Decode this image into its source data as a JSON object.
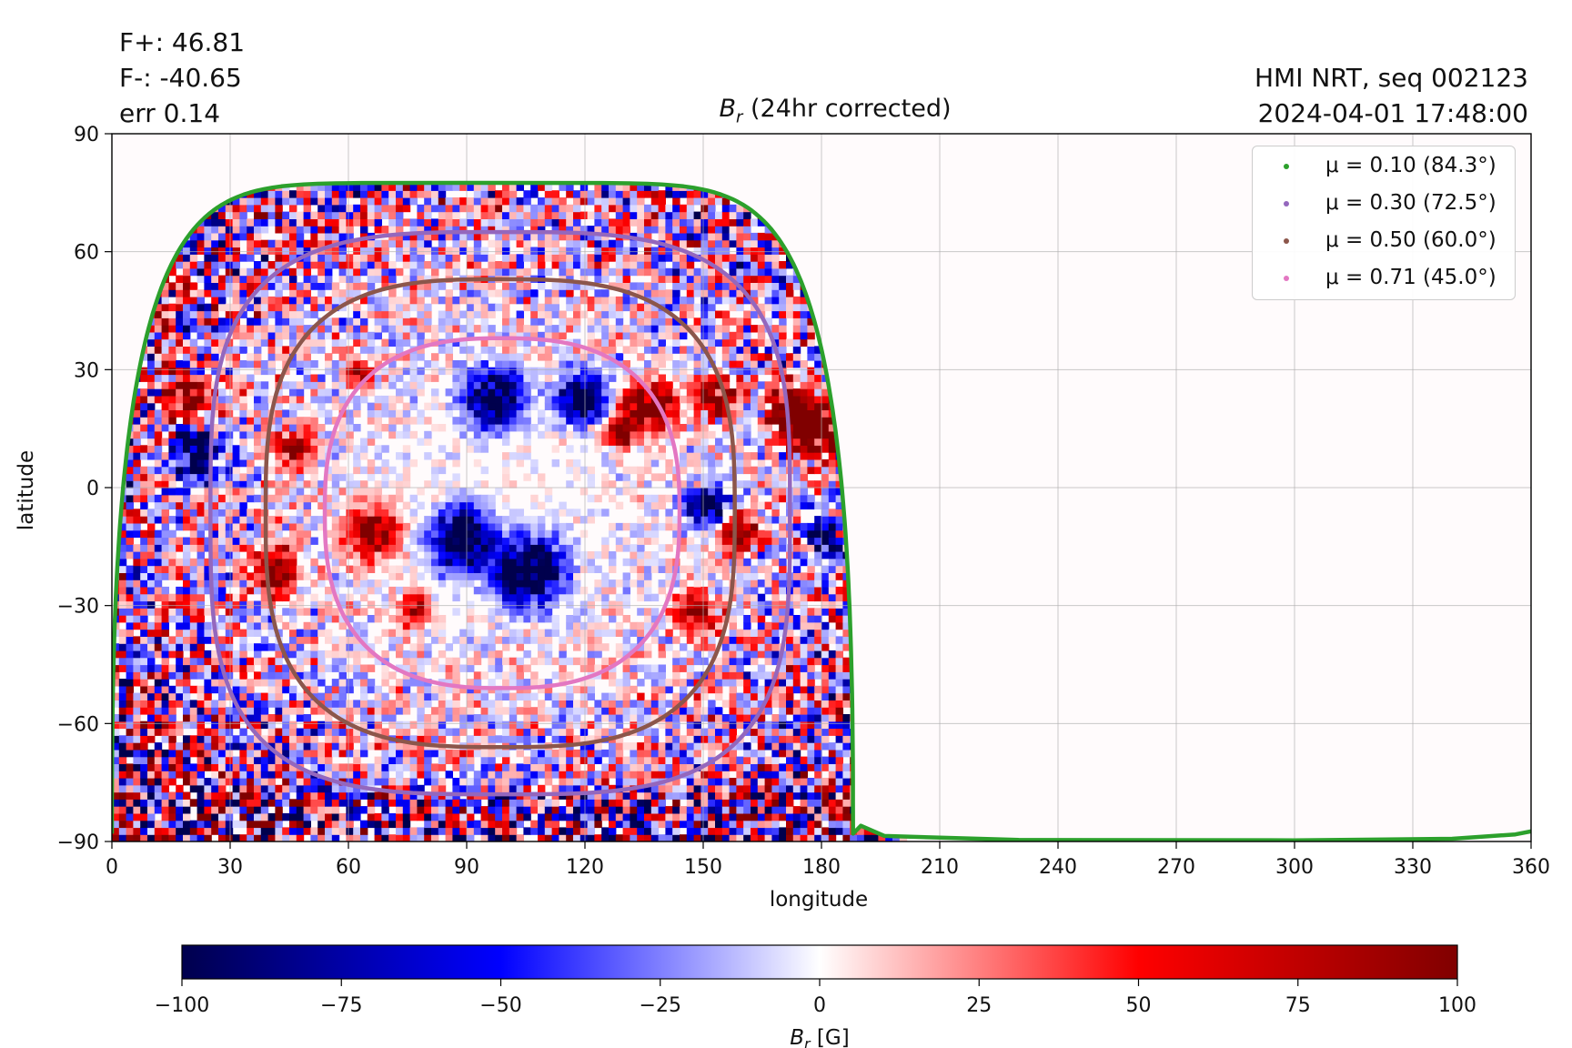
{
  "header": {
    "f_plus": "F+: 46.81",
    "f_minus": "F-: -40.65",
    "err": "err 0.14",
    "source": "HMI NRT, seq 002123",
    "timestamp": "2024-04-01 17:48:00"
  },
  "chart_data": {
    "type": "heatmap",
    "title": "B_r (24hr corrected)",
    "title_parts": {
      "symbol": "B",
      "subscript": "r",
      "rest": " (24hr corrected)"
    },
    "xlabel": "longitude",
    "ylabel": "latitude",
    "xlim": [
      0,
      360
    ],
    "ylim": [
      -90,
      90
    ],
    "xticks": [
      0,
      30,
      60,
      90,
      120,
      150,
      180,
      210,
      240,
      270,
      300,
      330,
      360
    ],
    "yticks": [
      -90,
      -60,
      -30,
      0,
      30,
      60,
      90
    ],
    "xtick_labels": [
      "0",
      "30",
      "60",
      "90",
      "120",
      "150",
      "180",
      "210",
      "240",
      "270",
      "300",
      "330",
      "360"
    ],
    "ytick_labels": [
      "−90",
      "−60",
      "−30",
      "0",
      "30",
      "60",
      "90"
    ],
    "grid": true,
    "colorbar": {
      "label": "B_r [G]",
      "label_parts": {
        "symbol": "B",
        "subscript": "r",
        "rest": " [G]"
      },
      "colormap": "seismic",
      "vmin": -100,
      "vmax": 100,
      "ticks": [
        -100,
        -75,
        -50,
        -25,
        0,
        25,
        50,
        75,
        100
      ],
      "tick_labels": [
        "−100",
        "−75",
        "−50",
        "−25",
        "0",
        "25",
        "50",
        "75",
        "100"
      ],
      "colors": [
        "#00004d",
        "#0000ff",
        "#ffffff",
        "#ff0000",
        "#800000"
      ]
    },
    "disk_center": {
      "lon": 98,
      "lat": -6
    },
    "legend_position": "top-right",
    "contours": [
      {
        "label": "μ = 0.10 (84.3°)",
        "mu": 0.1,
        "angle_deg": 84.3,
        "color": "#2ca02c",
        "lat_top": 77.5,
        "lat_bottom": -89,
        "lon_left": 0,
        "lon_right": 188
      },
      {
        "label": "μ = 0.30 (72.5°)",
        "mu": 0.3,
        "angle_deg": 72.5,
        "color": "#9467bd",
        "lat_top": 65,
        "lat_bottom": -78,
        "lon_left": 25,
        "lon_right": 172
      },
      {
        "label": "μ = 0.50 (60.0°)",
        "mu": 0.5,
        "angle_deg": 60.0,
        "color": "#8c564b",
        "lat_top": 53,
        "lat_bottom": -66,
        "lon_left": 39,
        "lon_right": 158
      },
      {
        "label": "μ = 0.71 (45.0°)",
        "mu": 0.71,
        "angle_deg": 45.0,
        "color": "#e377c2",
        "lat_top": 38,
        "lat_bottom": -51,
        "lon_left": 54,
        "lon_right": 144
      }
    ]
  }
}
